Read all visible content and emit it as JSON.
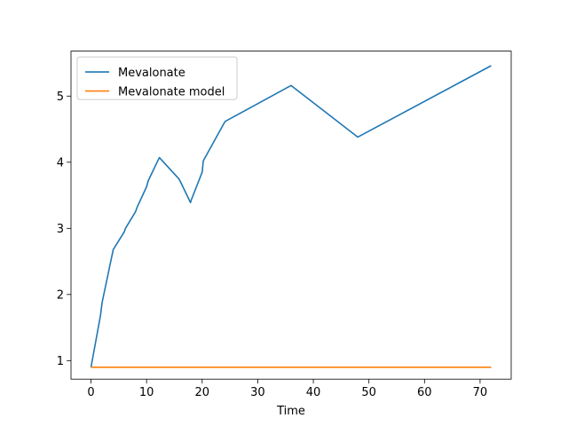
{
  "chart_data": {
    "type": "line",
    "title": "",
    "xlabel": "Time",
    "ylabel": "",
    "xlim": [
      -3.6,
      75.6
    ],
    "ylim": [
      0.72,
      5.68
    ],
    "xticks": [
      0,
      10,
      20,
      30,
      40,
      50,
      60,
      70
    ],
    "yticks": [
      1,
      2,
      3,
      4,
      5
    ],
    "grid": false,
    "legend_position": "top-left",
    "series": [
      {
        "name": "Mevalonate",
        "color": "#1f77b4",
        "x": [
          0,
          1.7,
          2,
          4,
          6,
          6.2,
          8,
          8.3,
          10,
          10.3,
          12,
          12.3,
          15.8,
          16,
          17.9,
          18,
          20,
          20.2,
          24,
          24.2,
          36,
          48,
          72
        ],
        "y": [
          0.9,
          1.68,
          1.88,
          2.68,
          2.95,
          3.0,
          3.25,
          3.32,
          3.63,
          3.72,
          4.02,
          4.07,
          3.75,
          3.72,
          3.39,
          3.42,
          3.85,
          4.02,
          4.6,
          4.62,
          5.16,
          4.38,
          5.46
        ]
      },
      {
        "name": "Mevalonate model",
        "color": "#ff7f0e",
        "x": [
          0,
          72
        ],
        "y": [
          0.9,
          0.9
        ]
      }
    ]
  }
}
